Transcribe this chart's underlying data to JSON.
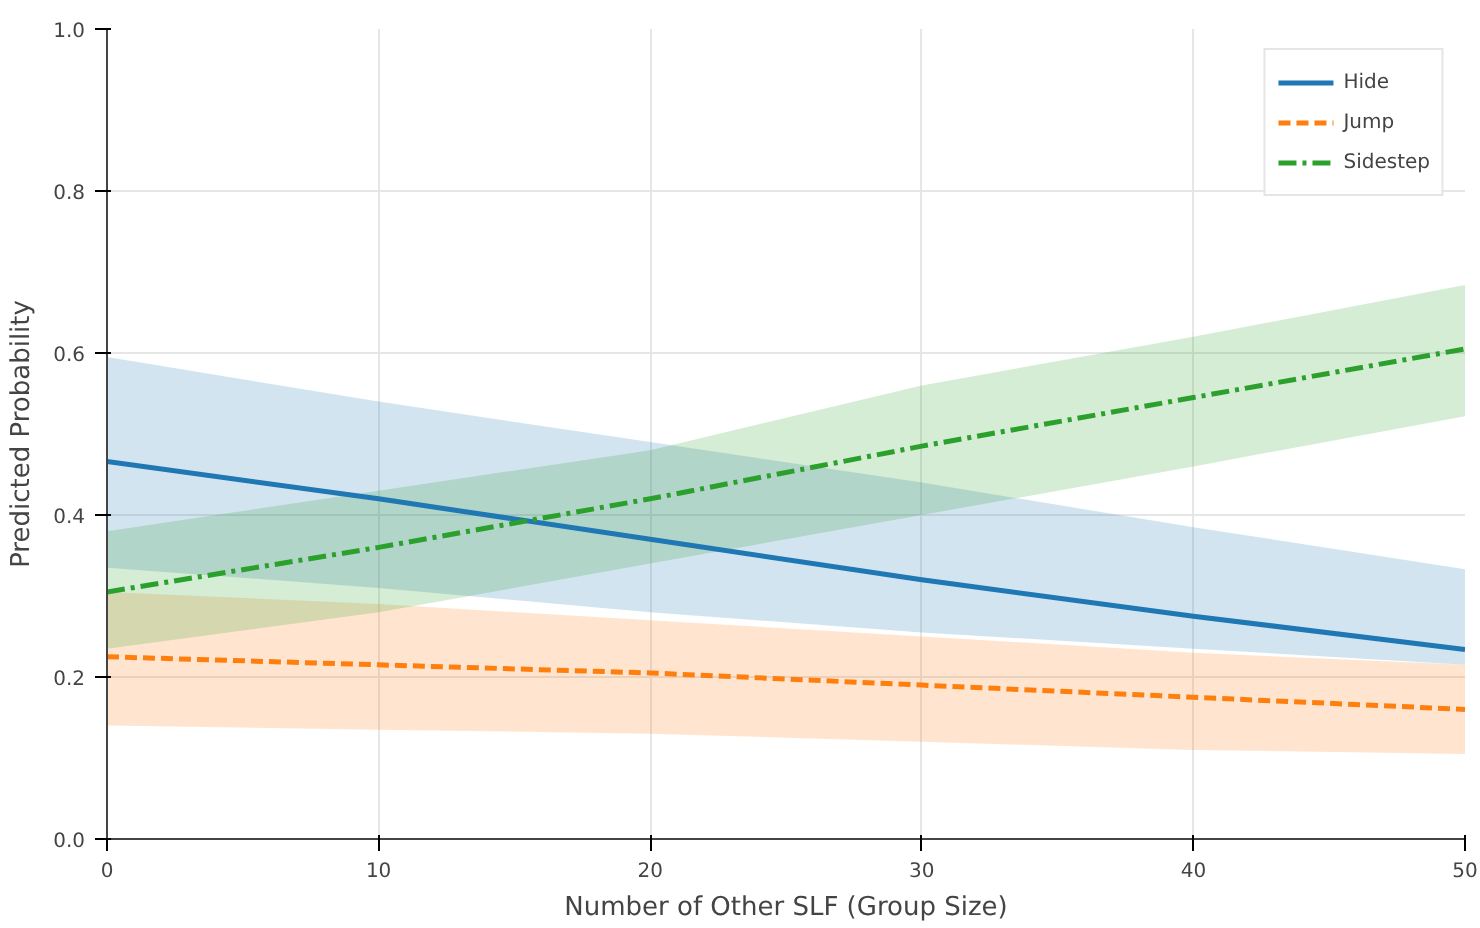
{
  "chart_data": {
    "type": "line",
    "xlabel": "Number of Other SLF (Group Size)",
    "ylabel": "Predicted Probability",
    "x": [
      0,
      10,
      20,
      30,
      40,
      50
    ],
    "xlim": [
      0,
      50
    ],
    "xticks": [
      0,
      10,
      20,
      30,
      40,
      50
    ],
    "ylim": [
      0,
      1.0
    ],
    "yticks": [
      {
        "value": 0,
        "label": "0.0"
      },
      0.2,
      0.4,
      0.6,
      0.8,
      {
        "value": 1,
        "label": "1.0"
      }
    ],
    "grid": true,
    "legend": "top right",
    "marker": "none",
    "series": [
      {
        "name": "Hide",
        "color": "#1f77b4",
        "line_style": "solid",
        "values": [
          0.466,
          0.42,
          0.37,
          0.32,
          0.275,
          0.234
        ],
        "lower": [
          0.335,
          0.31,
          0.28,
          0.255,
          0.235,
          0.215
        ],
        "upper": [
          0.595,
          0.54,
          0.49,
          0.44,
          0.385,
          0.333
        ]
      },
      {
        "name": "Jump",
        "color": "#ff7f0e",
        "line_style": "dashed",
        "values": [
          0.225,
          0.215,
          0.205,
          0.19,
          0.175,
          0.16
        ],
        "lower": [
          0.14,
          0.135,
          0.13,
          0.12,
          0.11,
          0.105
        ],
        "upper": [
          0.305,
          0.29,
          0.27,
          0.25,
          0.23,
          0.215
        ]
      },
      {
        "name": "Sidestep",
        "color": "#2ca02c",
        "line_style": "dashdot",
        "values": [
          0.305,
          0.36,
          0.42,
          0.485,
          0.545,
          0.605
        ],
        "lower": [
          0.235,
          0.28,
          0.34,
          0.4,
          0.46,
          0.522
        ],
        "upper": [
          0.38,
          0.43,
          0.48,
          0.56,
          0.62,
          0.684
        ]
      }
    ]
  }
}
